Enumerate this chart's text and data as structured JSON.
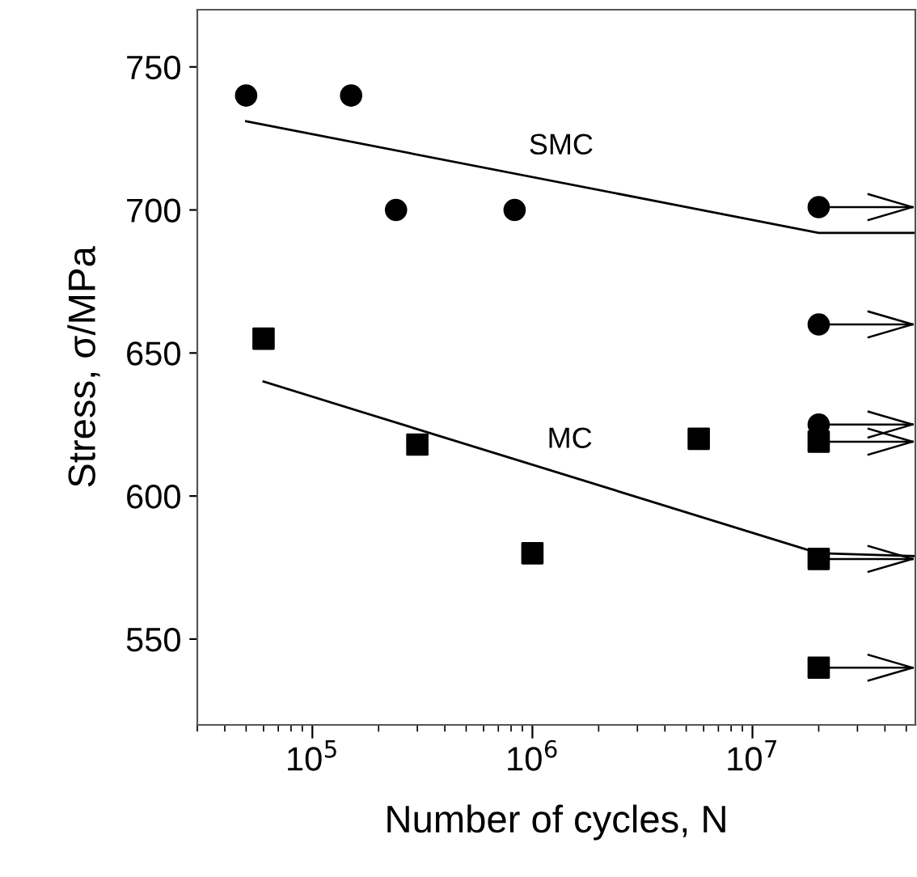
{
  "chart_data": {
    "type": "scatter",
    "xlabel": "Number of cycles, N",
    "ylabel": "Stress, σ/MPa",
    "log": "x",
    "xlim": [
      30000,
      55000000
    ],
    "ylim": [
      520,
      770
    ],
    "xticks": [
      {
        "value": 100000,
        "label": "10$^{5}$"
      },
      {
        "value": 1000000,
        "label": "10$^{6}$"
      },
      {
        "value": 10000000,
        "label": "10$^{7}$"
      }
    ],
    "yticks": [
      550,
      600,
      650,
      700,
      750
    ],
    "grid": false,
    "legend": false,
    "series": [
      {
        "type": "scatter",
        "marker": "circle",
        "color": "#000000",
        "x": [
          50000,
          150000,
          240000,
          830000,
          20000000,
          20000000,
          20000000
        ],
        "values": [
          740,
          740,
          700,
          700,
          701,
          660,
          625
        ]
      },
      {
        "type": "scatter",
        "marker": "square",
        "color": "#000000",
        "x": [
          60000,
          300000,
          1000000,
          5700000,
          20000000,
          20000000,
          20000000
        ],
        "values": [
          655,
          618,
          580,
          620,
          619,
          578,
          540
        ]
      },
      {
        "type": "line",
        "name": "SMC",
        "color": "#000000",
        "line_style": "solid",
        "x": [
          50000,
          20000000,
          55000000
        ],
        "values": [
          731,
          692,
          692
        ]
      },
      {
        "type": "line",
        "name": "MC",
        "color": "#000000",
        "line_style": "solid",
        "x": [
          60000,
          20000000,
          55000000
        ],
        "values": [
          640,
          580,
          579
        ]
      }
    ]
  }
}
